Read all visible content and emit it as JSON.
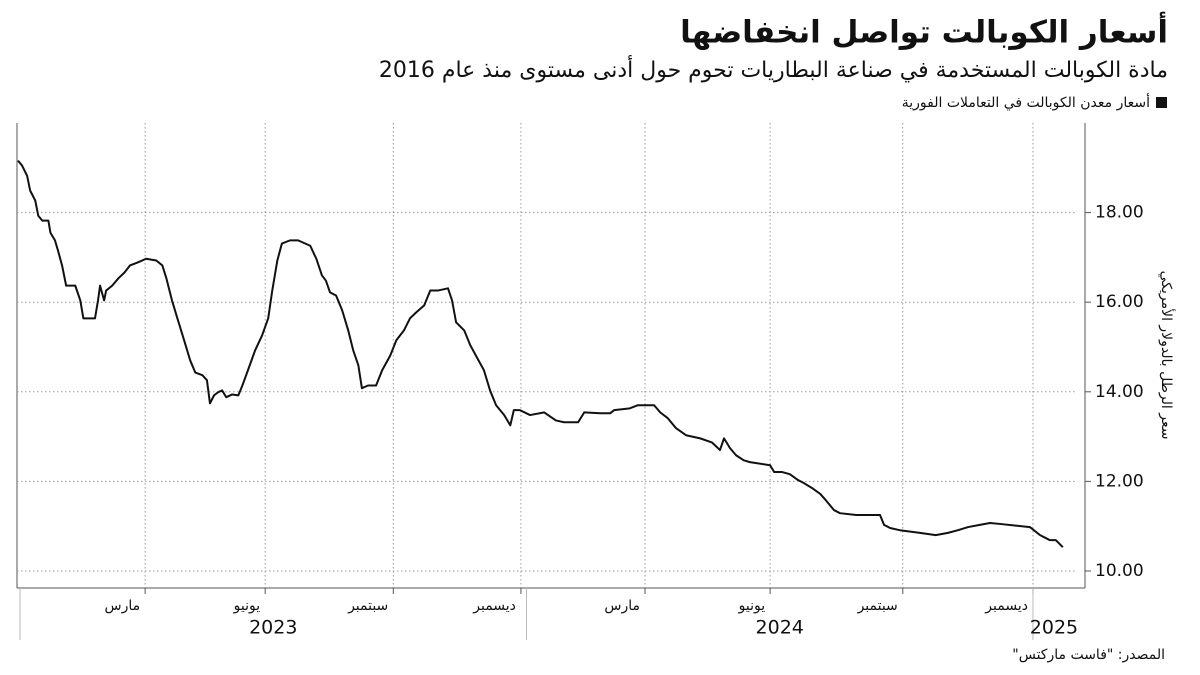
{
  "chart_data": {
    "type": "line",
    "title": "أسعار الكوبالت تواصل انخفاضها",
    "subtitle": "مادة الكوبالت المستخدمة في صناعة البطاريات تحوم حول أدنى مستوى منذ عام 2016",
    "y_label": "سعر الرطل بالدولار الأمريكي",
    "source": "المصدر: \"فاست ماركتس\"",
    "legend": "top-right",
    "grid": true,
    "xlim": [
      2022.994,
      2025.083
    ],
    "ylim": [
      9.62,
      20
    ],
    "xticks": [
      {
        "value": 2023.247,
        "label": "مارس"
      },
      {
        "value": 2023.484,
        "label": "يونيو"
      },
      {
        "value": 2023.737,
        "label": "سبتمبر"
      },
      {
        "value": 2023.989,
        "label": "ديسمبر"
      },
      {
        "value": 2024.234,
        "label": "مارس"
      },
      {
        "value": 2024.481,
        "label": "يونيو"
      },
      {
        "value": 2024.743,
        "label": "سبتمبر"
      },
      {
        "value": 2025.0,
        "label": "ديسمبر"
      }
    ],
    "years": [
      2023,
      2024,
      2025
    ],
    "yticks": [
      {
        "value": 10,
        "label": "10.00"
      },
      {
        "value": 12,
        "label": "12.00"
      },
      {
        "value": 14,
        "label": "14.00"
      },
      {
        "value": 16,
        "label": "16.00"
      },
      {
        "value": 18,
        "label": "18.00"
      }
    ],
    "x": [
      2022.996,
      2023.004,
      2023.014,
      2023.02,
      2023.03,
      2023.036,
      2023.044,
      2023.056,
      2023.06,
      2023.069,
      2023.075,
      2023.083,
      2023.091,
      2023.109,
      2023.119,
      2023.125,
      2023.148,
      2023.154,
      2023.158,
      2023.166,
      2023.17,
      2023.182,
      2023.194,
      2023.206,
      2023.217,
      2023.233,
      2023.249,
      2023.269,
      2023.281,
      2023.289,
      2023.3,
      2023.312,
      2023.324,
      2023.336,
      2023.346,
      2023.36,
      2023.369,
      2023.375,
      2023.383,
      2023.391,
      2023.399,
      2023.407,
      2023.419,
      2023.431,
      2023.439,
      2023.45,
      2023.464,
      2023.478,
      2023.49,
      2023.498,
      2023.508,
      2023.517,
      2023.533,
      2023.549,
      2023.563,
      2023.573,
      2023.585,
      2023.596,
      2023.604,
      2023.612,
      2023.624,
      2023.636,
      2023.648,
      2023.658,
      2023.668,
      2023.675,
      2023.687,
      2023.703,
      2023.715,
      2023.731,
      2023.743,
      2023.758,
      2023.77,
      2023.782,
      2023.798,
      2023.81,
      2023.825,
      2023.845,
      2023.853,
      2023.861,
      2023.877,
      2023.889,
      2023.9,
      2023.916,
      2023.928,
      2023.94,
      2023.956,
      2023.968,
      2023.975,
      2023.987,
      2024.007,
      2024.035,
      2024.058,
      2024.074,
      2024.102,
      2024.114,
      2024.145,
      2024.165,
      2024.173,
      2024.204,
      2024.22,
      2024.252,
      2024.264,
      2024.279,
      2024.295,
      2024.315,
      2024.343,
      2024.366,
      2024.382,
      2024.39,
      2024.402,
      2024.414,
      2024.429,
      2024.441,
      2024.481,
      2024.489,
      2024.504,
      2024.52,
      2024.536,
      2024.548,
      2024.564,
      2024.58,
      2024.591,
      2024.607,
      2024.619,
      2024.651,
      2024.698,
      2024.706,
      2024.718,
      2024.737,
      2024.777,
      2024.808,
      2024.832,
      2024.852,
      2024.872,
      2024.895,
      2024.915,
      2024.935,
      2024.994,
      2025.014,
      2025.033,
      2025.045,
      2025.059
    ],
    "series": [
      {
        "name": "أسعار معدن الكوبالت في التعاملات الفورية",
        "color": "#111111",
        "values": [
          19.16,
          19.05,
          18.82,
          18.49,
          18.27,
          17.93,
          17.82,
          17.82,
          17.55,
          17.38,
          17.15,
          16.82,
          16.37,
          16.37,
          16.04,
          15.64,
          15.64,
          16.04,
          16.37,
          16.04,
          16.26,
          16.37,
          16.53,
          16.66,
          16.82,
          16.89,
          16.97,
          16.93,
          16.82,
          16.53,
          16.04,
          15.59,
          15.15,
          14.7,
          14.43,
          14.37,
          14.26,
          13.74,
          13.92,
          13.99,
          14.03,
          13.88,
          13.94,
          13.92,
          14.14,
          14.48,
          14.92,
          15.26,
          15.64,
          16.26,
          16.93,
          17.31,
          17.38,
          17.38,
          17.31,
          17.26,
          16.97,
          16.6,
          16.48,
          16.22,
          16.15,
          15.82,
          15.37,
          14.92,
          14.59,
          14.08,
          14.14,
          14.14,
          14.48,
          14.81,
          15.15,
          15.37,
          15.64,
          15.77,
          15.93,
          16.26,
          16.26,
          16.31,
          16.04,
          15.55,
          15.37,
          15.04,
          14.81,
          14.48,
          14.03,
          13.7,
          13.48,
          13.25,
          13.59,
          13.59,
          13.48,
          13.54,
          13.36,
          13.32,
          13.32,
          13.54,
          13.52,
          13.52,
          13.59,
          13.63,
          13.7,
          13.7,
          13.54,
          13.41,
          13.19,
          13.03,
          12.96,
          12.87,
          12.7,
          12.96,
          12.74,
          12.58,
          12.47,
          12.43,
          12.36,
          12.21,
          12.21,
          12.16,
          12.03,
          11.96,
          11.85,
          11.72,
          11.58,
          11.36,
          11.29,
          11.25,
          11.25,
          11.03,
          10.96,
          10.91,
          10.85,
          10.8,
          10.85,
          10.91,
          10.98,
          11.03,
          11.07,
          11.05,
          10.98,
          10.8,
          10.69,
          10.69,
          10.53
        ]
      }
    ]
  }
}
